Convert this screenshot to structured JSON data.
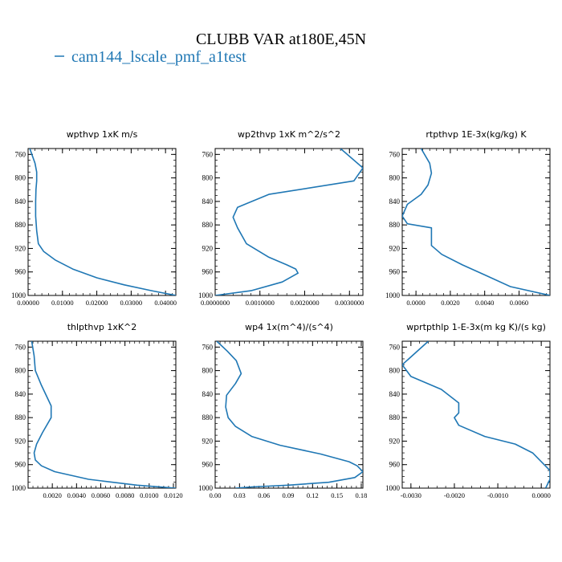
{
  "figure": {
    "title": "CLUBB VAR at180E,45N",
    "legend": {
      "label": "cam144_lscale_pmf_a1test",
      "color": "#1f77b4"
    }
  },
  "chart_data": [
    {
      "type": "line",
      "title": "wpthvp   1xK m/s",
      "xlim": [
        0,
        0.043
      ],
      "ylim": [
        750,
        1000
      ],
      "y_inverted": true,
      "xticks": [
        0,
        0.01,
        0.02,
        0.03,
        0.04
      ],
      "xtick_labels": [
        "0.00000",
        "0.01000",
        "0.02000",
        "0.03000",
        "0.04000"
      ],
      "yticks": [
        760,
        800,
        840,
        880,
        920,
        960,
        1000
      ],
      "ytick_labels": [
        "760",
        "800",
        "840",
        "880",
        "920",
        "960",
        "1000"
      ],
      "series": [
        {
          "color": "#1f77b4",
          "x": [
            0.0005,
            0.002,
            0.0025,
            0.0025,
            0.0023,
            0.0022,
            0.0022,
            0.0025,
            0.003,
            0.0045,
            0.008,
            0.013,
            0.02,
            0.028,
            0.036,
            0.043
          ],
          "y": [
            750,
            775,
            790,
            805,
            820,
            840,
            865,
            890,
            912,
            925,
            940,
            955,
            970,
            982,
            992,
            1000
          ]
        }
      ]
    },
    {
      "type": "line",
      "title": "wp2thvp   1xK m^2/s^2",
      "xlim": [
        0,
        0.0033
      ],
      "ylim": [
        750,
        1000
      ],
      "y_inverted": true,
      "xticks": [
        0,
        0.001,
        0.002,
        0.003
      ],
      "xtick_labels": [
        "0.0000000",
        "0.0010000",
        "0.0020000",
        "0.0030000"
      ],
      "yticks": [
        760,
        800,
        840,
        880,
        920,
        960,
        1000
      ],
      "ytick_labels": [
        "760",
        "800",
        "840",
        "880",
        "920",
        "960",
        "1000"
      ],
      "series": [
        {
          "color": "#1f77b4",
          "x": [
            0.0028,
            0.0033,
            0.0031,
            0.0012,
            0.0005,
            0.0004,
            0.0005,
            0.0007,
            0.0012,
            0.0016,
            0.0018,
            0.00185,
            0.0015,
            0.0008,
            0.0
          ],
          "y": [
            750,
            783,
            805,
            828,
            850,
            867,
            885,
            912,
            935,
            948,
            955,
            962,
            977,
            992,
            1000
          ]
        }
      ]
    },
    {
      "type": "line",
      "title": "rtpthvp   1E-3x(kg/kg) K",
      "xlim": [
        -0.0008,
        0.0078
      ],
      "ylim": [
        750,
        1000
      ],
      "y_inverted": true,
      "xticks": [
        0,
        0.002,
        0.004,
        0.006
      ],
      "xtick_labels": [
        "0.0000",
        "0.0020",
        "0.0040",
        "0.0060"
      ],
      "yticks": [
        760,
        800,
        840,
        880,
        920,
        960,
        1000
      ],
      "ytick_labels": [
        "760",
        "800",
        "840",
        "880",
        "920",
        "960",
        "1000"
      ],
      "series": [
        {
          "color": "#1f77b4",
          "x": [
            0.0003,
            0.0008,
            0.0009,
            0.0007,
            0.0003,
            -0.0005,
            -0.0008,
            -0.0005,
            0.0009,
            0.0009,
            0.0015,
            0.0027,
            0.004,
            0.0055,
            0.0078
          ],
          "y": [
            750,
            775,
            792,
            812,
            828,
            845,
            865,
            878,
            885,
            915,
            930,
            948,
            965,
            985,
            1000
          ]
        }
      ]
    },
    {
      "type": "line",
      "title": "thlpthvp   1xK^2",
      "xlim": [
        0,
        0.0122
      ],
      "ylim": [
        750,
        1000
      ],
      "y_inverted": true,
      "xticks": [
        0.002,
        0.004,
        0.006,
        0.008,
        0.01,
        0.012
      ],
      "xtick_labels": [
        "0.0020",
        "0.0040",
        "0.0060",
        "0.0080",
        "0.0100",
        "0.0120"
      ],
      "yticks": [
        760,
        800,
        840,
        880,
        920,
        960,
        1000
      ],
      "ytick_labels": [
        "760",
        "800",
        "840",
        "880",
        "920",
        "960",
        "1000"
      ],
      "series": [
        {
          "color": "#1f77b4",
          "x": [
            0.0003,
            0.0005,
            0.0006,
            0.0011,
            0.0019,
            0.0019,
            0.0012,
            0.0007,
            0.0005,
            0.0006,
            0.0011,
            0.0022,
            0.005,
            0.009,
            0.0122
          ],
          "y": [
            750,
            775,
            800,
            825,
            860,
            880,
            905,
            925,
            940,
            952,
            962,
            972,
            985,
            995,
            1000
          ]
        }
      ]
    },
    {
      "type": "line",
      "title": "wp4   1x(m^4)/(s^4)",
      "xlim": [
        0,
        0.182
      ],
      "ylim": [
        750,
        1000
      ],
      "y_inverted": true,
      "xticks": [
        0,
        0.03,
        0.06,
        0.09,
        0.12,
        0.15,
        0.18
      ],
      "xtick_labels": [
        "0.00",
        "0.03",
        "0.06",
        "0.09",
        "0.12",
        "0.15",
        "0.18"
      ],
      "yticks": [
        760,
        800,
        840,
        880,
        920,
        960,
        1000
      ],
      "ytick_labels": [
        "760",
        "800",
        "840",
        "880",
        "920",
        "960",
        "1000"
      ],
      "series": [
        {
          "color": "#1f77b4",
          "x": [
            0.002,
            0.015,
            0.026,
            0.032,
            0.025,
            0.014,
            0.013,
            0.016,
            0.025,
            0.045,
            0.08,
            0.13,
            0.165,
            0.175,
            0.182,
            0.172,
            0.14,
            0.09,
            0.045,
            0.025
          ],
          "y": [
            750,
            767,
            783,
            805,
            822,
            842,
            862,
            880,
            895,
            912,
            927,
            942,
            955,
            962,
            972,
            982,
            990,
            995,
            998,
            1000
          ]
        }
      ]
    },
    {
      "type": "line",
      "title": "wprtpthlp   1-E-3x(m kg K)/(s kg)",
      "xlim": [
        -0.0032,
        0.0002
      ],
      "ylim": [
        750,
        1000
      ],
      "y_inverted": true,
      "xticks": [
        -0.003,
        -0.002,
        -0.001,
        0.0
      ],
      "xtick_labels": [
        "-0.0030",
        "-0.0020",
        "-0.0010",
        "0.0000"
      ],
      "yticks": [
        760,
        800,
        840,
        880,
        920,
        960,
        1000
      ],
      "ytick_labels": [
        "760",
        "800",
        "840",
        "880",
        "920",
        "960",
        "1000"
      ],
      "series": [
        {
          "color": "#1f77b4",
          "x": [
            -0.0026,
            -0.0032,
            -0.003,
            -0.0023,
            -0.0019,
            -0.0019,
            -0.002,
            -0.0019,
            -0.0013,
            -0.0006,
            -0.0002,
            0.0,
            0.0002,
            0.0002,
            0.0001
          ],
          "y": [
            750,
            790,
            810,
            832,
            855,
            872,
            880,
            893,
            912,
            925,
            940,
            955,
            970,
            985,
            1000
          ]
        }
      ]
    }
  ]
}
